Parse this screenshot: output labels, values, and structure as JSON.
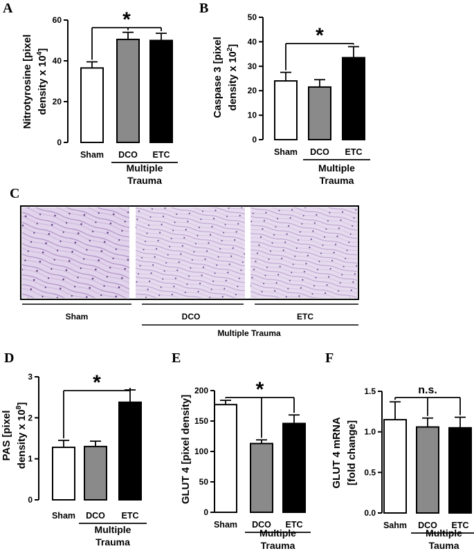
{
  "colors": {
    "sham": "#ffffff",
    "dco": "#8a8a8a",
    "etc": "#000000",
    "tissue": "#d9c7e6",
    "tissue_dark": "#9b76b8"
  },
  "histology": {
    "letter": "C",
    "labels": [
      "Sham",
      "DCO",
      "ETC"
    ],
    "group_label": "Multiple Trauma"
  },
  "chart_data": [
    {
      "id": "A",
      "type": "bar",
      "ylabel_lines": [
        "Nitrotyrosine [pixel",
        "density x 10^4]"
      ],
      "ylabel_main": "Nitrotyrosine [pixel",
      "ylabel_second": "density x 10",
      "ylabel_sup": "4",
      "ylabel_end": "]",
      "categories": [
        "Sham",
        "DCO",
        "ETC"
      ],
      "values": [
        36.5,
        50.5,
        50.0
      ],
      "errors": [
        3.0,
        3.5,
        3.5
      ],
      "ylim": [
        0,
        60
      ],
      "yticks": [
        0,
        20,
        40,
        60
      ],
      "group_label_lines": [
        "Multiple",
        "Trauma"
      ],
      "sig": {
        "label": "*",
        "from": 0,
        "to": [
          1,
          2
        ]
      }
    },
    {
      "id": "B",
      "type": "bar",
      "ylabel_main": "Caspase 3 [pixel",
      "ylabel_second": "density x 10",
      "ylabel_sup": "2",
      "ylabel_end": "]",
      "categories": [
        "Sham",
        "DCO",
        "ETC"
      ],
      "values": [
        24.0,
        21.5,
        33.5
      ],
      "errors": [
        3.5,
        3.0,
        4.5
      ],
      "ylim": [
        0,
        50
      ],
      "yticks": [
        0,
        10,
        20,
        30,
        40,
        50
      ],
      "group_label_lines": [
        "Multiple",
        "Trauma"
      ],
      "sig": {
        "label": "*",
        "from": 0,
        "to": [
          2
        ]
      }
    },
    {
      "id": "D",
      "type": "bar",
      "ylabel_main": "PAS [pixel",
      "ylabel_second": "density x 10",
      "ylabel_sup": "8",
      "ylabel_end": "]",
      "categories": [
        "Sham",
        "DCO",
        "ETC"
      ],
      "values": [
        1.28,
        1.3,
        2.38
      ],
      "errors": [
        0.17,
        0.13,
        0.3
      ],
      "ylim": [
        0,
        3
      ],
      "yticks": [
        0,
        1,
        2,
        3
      ],
      "group_label_lines": [
        "Multiple",
        "Trauma"
      ],
      "sig": {
        "label": "*",
        "from": 0,
        "to": [
          2
        ]
      }
    },
    {
      "id": "E",
      "type": "bar",
      "ylabel_main": "GLUT 4 [pixel density]",
      "ylabel_second": "",
      "ylabel_sup": "",
      "ylabel_end": "",
      "categories": [
        "Sham",
        "DCO",
        "ETC"
      ],
      "values": [
        177,
        113,
        146
      ],
      "errors": [
        7,
        6,
        14
      ],
      "ylim": [
        0,
        200
      ],
      "yticks": [
        0,
        50,
        100,
        150,
        200
      ],
      "group_label_lines": [
        "Multiple",
        "Trauma"
      ],
      "sig": {
        "label": "*",
        "from": 0,
        "to": [
          1,
          2
        ]
      }
    },
    {
      "id": "F",
      "type": "bar",
      "ylabel_main": "GLUT 4 mRNA",
      "ylabel_second": "[fold change]",
      "ylabel_sup": "",
      "ylabel_end": "",
      "categories": [
        "Sahm",
        "DCO",
        "ETC"
      ],
      "values": [
        1.15,
        1.06,
        1.05
      ],
      "errors": [
        0.22,
        0.11,
        0.13
      ],
      "ylim": [
        0,
        1.5
      ],
      "yticks": [
        "0.0",
        "0.5",
        "1.0",
        "1.5"
      ],
      "group_label_lines": [
        "Multiple",
        "Tauma"
      ],
      "sig": {
        "label": "n.s.",
        "from": 0,
        "to": [
          1,
          2
        ]
      }
    }
  ]
}
